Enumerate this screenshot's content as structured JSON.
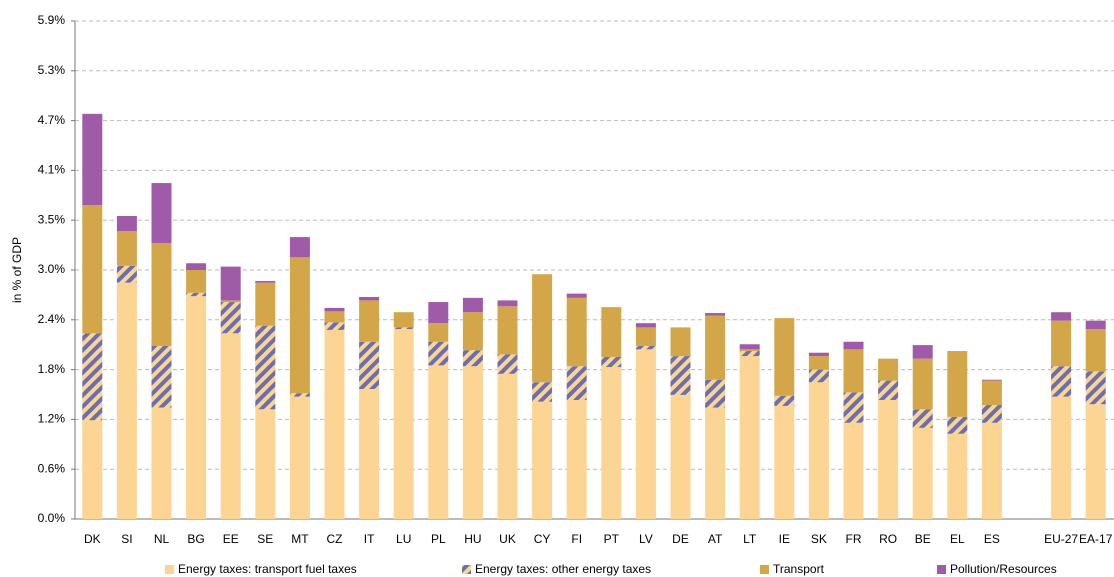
{
  "chart_data": {
    "type": "stacked_bar",
    "y_label": "in % of GDP",
    "categories": [
      "DK",
      "SI",
      "NL",
      "BG",
      "EE",
      "SE",
      "MT",
      "CZ",
      "IT",
      "LU",
      "PL",
      "HU",
      "UK",
      "CY",
      "FI",
      "PT",
      "LV",
      "DE",
      "AT",
      "LT",
      "IE",
      "SK",
      "FR",
      "RO",
      "BE",
      "EL",
      "ES",
      null,
      "EU-27",
      "EA-17"
    ],
    "series": [
      {
        "name": "Energy taxes: transport fuel taxes",
        "color": "#fcd493",
        "values": [
          1.17,
          2.8,
          1.32,
          2.64,
          2.2,
          1.3,
          1.45,
          2.24,
          1.54,
          2.25,
          1.82,
          1.81,
          1.72,
          1.39,
          1.41,
          1.8,
          2.01,
          1.47,
          1.32,
          1.93,
          1.34,
          1.62,
          1.14,
          1.41,
          1.08,
          1.01,
          1.14,
          null,
          1.45,
          1.36
        ]
      },
      {
        "name": "Energy taxes: other energy taxes",
        "color": "#6b6fae",
        "pattern": "hatch",
        "values": [
          1.03,
          0.2,
          0.73,
          0.04,
          0.37,
          0.99,
          0.04,
          0.09,
          0.56,
          0.02,
          0.28,
          0.19,
          0.23,
          0.23,
          0.4,
          0.12,
          0.04,
          0.46,
          0.33,
          0.06,
          0.12,
          0.15,
          0.36,
          0.23,
          0.22,
          0.2,
          0.21,
          null,
          0.36,
          0.39
        ]
      },
      {
        "name": "Transport",
        "color": "#d4a64a",
        "values": [
          1.52,
          0.41,
          1.22,
          0.27,
          0.02,
          0.51,
          1.61,
          0.13,
          0.49,
          0.18,
          0.22,
          0.45,
          0.57,
          1.28,
          0.81,
          0.59,
          0.22,
          0.34,
          0.76,
          0.02,
          0.92,
          0.16,
          0.51,
          0.26,
          0.6,
          0.78,
          0.29,
          null,
          0.54,
          0.5
        ]
      },
      {
        "name": "Pollution/Resources",
        "color": "#a05ba8",
        "values": [
          1.08,
          0.18,
          0.71,
          0.08,
          0.4,
          0.02,
          0.24,
          0.04,
          0.04,
          0,
          0.25,
          0.17,
          0.07,
          0,
          0.05,
          0,
          0.05,
          0,
          0.03,
          0.06,
          0,
          0.04,
          0.09,
          0,
          0.16,
          0,
          0.01,
          null,
          0.1,
          0.1
        ]
      }
    ],
    "ylim": [
      0,
      5.9
    ],
    "yticks": [
      {
        "value": 0,
        "label": "0.0%"
      },
      {
        "value": 0.59,
        "label": "0.6%"
      },
      {
        "value": 1.18,
        "label": "1.2%"
      },
      {
        "value": 1.77,
        "label": "1.8%"
      },
      {
        "value": 2.36,
        "label": "2.4%"
      },
      {
        "value": 2.95,
        "label": "3.0%"
      },
      {
        "value": 3.54,
        "label": "3.5%"
      },
      {
        "value": 4.13,
        "label": "4.1%"
      },
      {
        "value": 4.72,
        "label": "4.7%"
      },
      {
        "value": 5.31,
        "label": "5.3%"
      },
      {
        "value": 5.9,
        "label": "5.9%"
      }
    ],
    "grid": true,
    "legend": "bottom"
  }
}
